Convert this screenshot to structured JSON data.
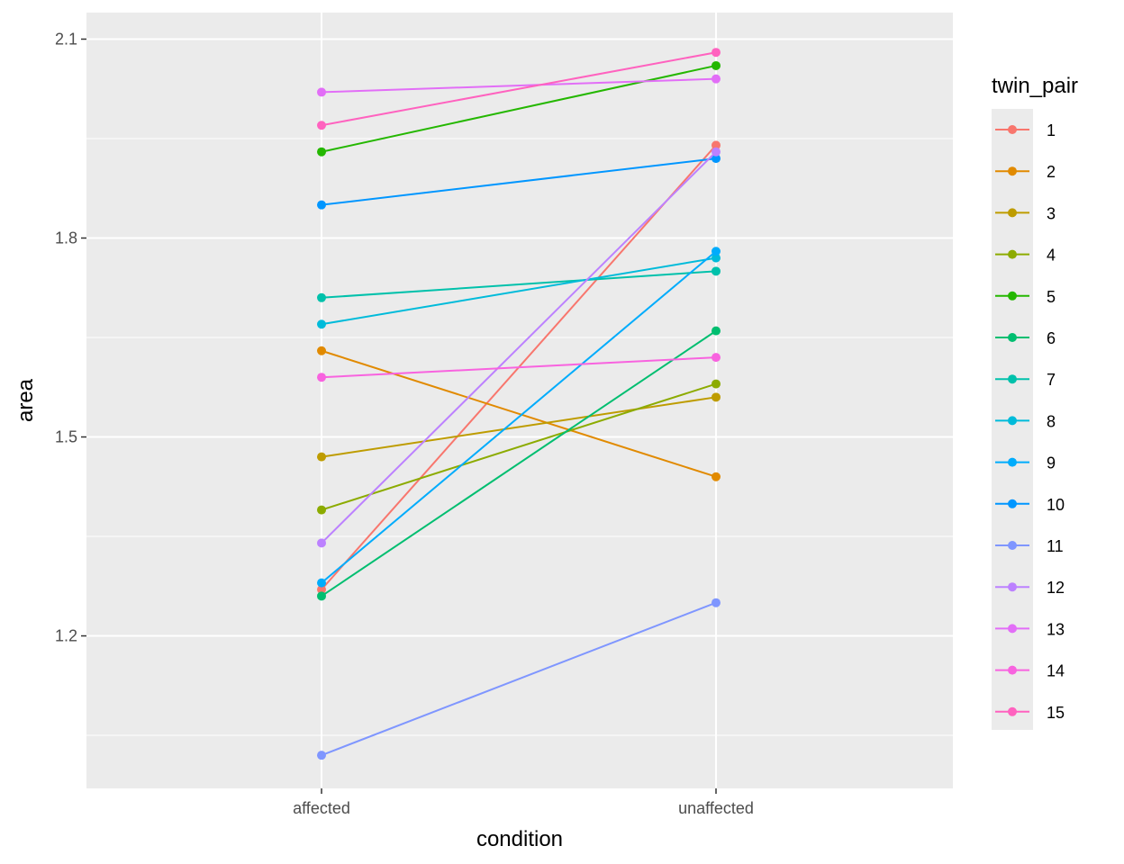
{
  "chart_data": {
    "type": "line",
    "xlabel": "condition",
    "ylabel": "area",
    "categories": [
      "affected",
      "unaffected"
    ],
    "ylim": [
      0.97,
      2.14
    ],
    "y_ticks": [
      1.2,
      1.5,
      1.8,
      2.1
    ],
    "y_tick_labels": [
      "1.2",
      "1.5",
      "1.8",
      "2.1"
    ],
    "y_minor_ticks": [
      1.05,
      1.35,
      1.65,
      1.95
    ],
    "grid": true,
    "legend": {
      "title": "twin_pair",
      "placement": "right"
    },
    "series": [
      {
        "name": "1",
        "color": "#F8766D",
        "values": [
          1.27,
          1.94
        ]
      },
      {
        "name": "2",
        "color": "#E18A00",
        "values": [
          1.63,
          1.44
        ]
      },
      {
        "name": "3",
        "color": "#BE9C00",
        "values": [
          1.47,
          1.56
        ]
      },
      {
        "name": "4",
        "color": "#8CAB00",
        "values": [
          1.39,
          1.58
        ]
      },
      {
        "name": "5",
        "color": "#24B700",
        "values": [
          1.93,
          2.06
        ]
      },
      {
        "name": "6",
        "color": "#00BE70",
        "values": [
          1.26,
          1.66
        ]
      },
      {
        "name": "7",
        "color": "#00C1AB",
        "values": [
          1.71,
          1.75
        ]
      },
      {
        "name": "8",
        "color": "#00BBDA",
        "values": [
          1.67,
          1.77
        ]
      },
      {
        "name": "9",
        "color": "#00ACFC",
        "values": [
          1.28,
          1.78
        ]
      },
      {
        "name": "10",
        "color": "#0096FF",
        "values": [
          1.85,
          1.92
        ]
      },
      {
        "name": "11",
        "color": "#7F96FF",
        "values": [
          1.02,
          1.25
        ]
      },
      {
        "name": "12",
        "color": "#BC81FF",
        "values": [
          1.34,
          1.93
        ]
      },
      {
        "name": "13",
        "color": "#E26EF7",
        "values": [
          2.02,
          2.04
        ]
      },
      {
        "name": "14",
        "color": "#F863DF",
        "values": [
          1.59,
          1.62
        ]
      },
      {
        "name": "15",
        "color": "#FF62BF",
        "values": [
          1.97,
          2.08
        ]
      }
    ]
  }
}
